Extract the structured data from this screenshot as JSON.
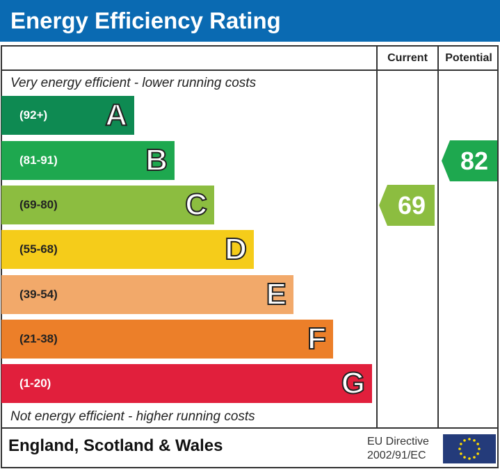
{
  "title": "Energy Efficiency Rating",
  "columns": {
    "current": "Current",
    "potential": "Potential"
  },
  "top_note": "Very energy efficient - lower running costs",
  "bottom_note": "Not energy efficient - higher running costs",
  "footer": {
    "region": "England, Scotland & Wales",
    "directive_line1": "EU Directive",
    "directive_line2": "2002/91/EC",
    "flag_icon": "eu-flag"
  },
  "chart_data": {
    "type": "bar",
    "title": "Energy Efficiency Rating",
    "categories": [
      "A",
      "B",
      "C",
      "D",
      "E",
      "F",
      "G"
    ],
    "ranges": [
      "(92+)",
      "(81-91)",
      "(69-80)",
      "(55-68)",
      "(39-54)",
      "(21-38)",
      "(1-20)"
    ],
    "colors": [
      "#0e8a52",
      "#1ea84f",
      "#8cbd40",
      "#f5cc1a",
      "#f2a96a",
      "#ec7f29",
      "#e11f3c"
    ],
    "current": {
      "value": 69,
      "band": "C",
      "color": "#8cbd40"
    },
    "potential": {
      "value": 82,
      "band": "B",
      "color": "#1ea84f"
    }
  }
}
